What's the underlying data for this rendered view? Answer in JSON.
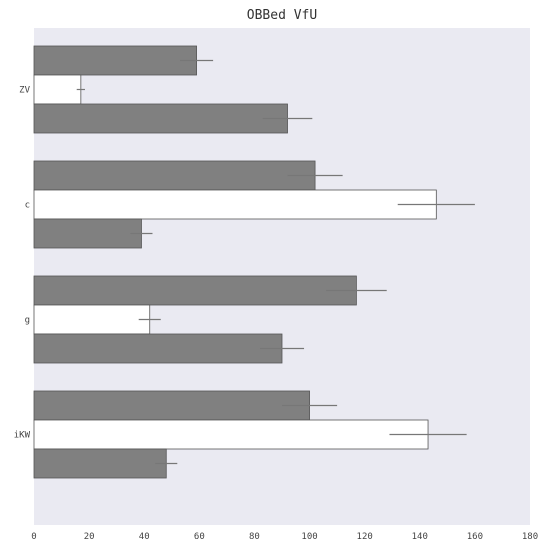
{
  "chart_data": {
    "type": "bar",
    "orientation": "horizontal",
    "title": "OBBed VfU",
    "categories": [
      "ZV",
      "c",
      "g",
      "iKW"
    ],
    "series": [
      {
        "values": [
          59,
          102,
          117,
          100
        ],
        "errors": [
          6,
          10,
          11,
          10
        ],
        "color": "#808080"
      },
      {
        "values": [
          17,
          146,
          42,
          143
        ],
        "errors": [
          1.5,
          14,
          4,
          14
        ],
        "color": "#ffffff"
      },
      {
        "values": [
          92,
          39,
          90,
          48
        ],
        "errors": [
          9,
          4,
          8,
          4
        ],
        "color": "#808080"
      }
    ],
    "xlim": [
      0,
      180
    ],
    "xticks": [
      0,
      20,
      40,
      60,
      80,
      100,
      120,
      140,
      160,
      180
    ],
    "grid": false,
    "legend": "none",
    "background_color": "#eaeaf2"
  }
}
